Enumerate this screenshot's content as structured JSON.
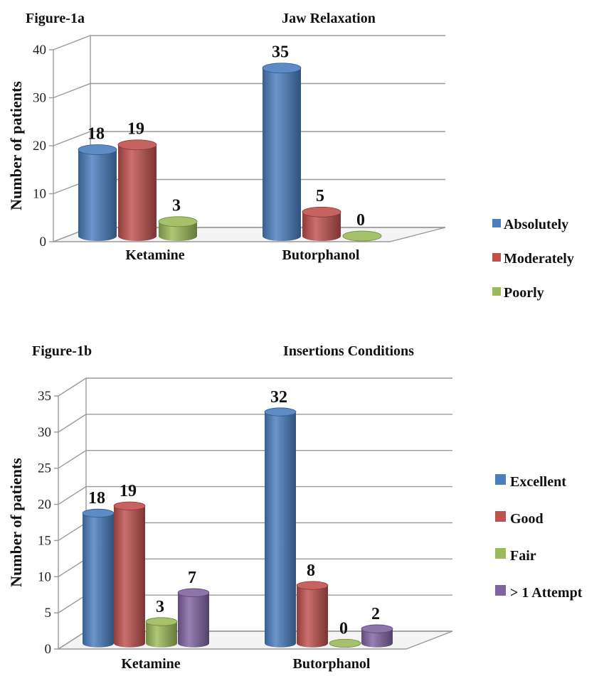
{
  "chart_data": [
    {
      "type": "bar",
      "figure_label": "Figure-1a",
      "title": "Jaw Relaxation",
      "xlabel": "",
      "ylabel": "Number of patients",
      "ylim": [
        0,
        40
      ],
      "yticks": [
        "0",
        "10",
        "20",
        "30",
        "40"
      ],
      "categories": [
        "Ketamine",
        "Butorphanol"
      ],
      "series": [
        {
          "name": "Absolutely",
          "color": "#4a7ebf",
          "values": [
            18,
            35
          ]
        },
        {
          "name": "Moderately",
          "color": "#c0504d",
          "values": [
            19,
            5
          ]
        },
        {
          "name": "Poorly",
          "color": "#9bbb59",
          "values": [
            3,
            0
          ]
        }
      ],
      "legend_position": "right",
      "grid": true
    },
    {
      "type": "bar",
      "figure_label": "Figure-1b",
      "title": "Insertions Conditions",
      "xlabel": "",
      "ylabel": "Number of patients",
      "ylim": [
        0,
        35
      ],
      "yticks": [
        "0",
        "5",
        "10",
        "15",
        "20",
        "25",
        "30",
        "35"
      ],
      "categories": [
        "Ketamine",
        "Butorphanol"
      ],
      "series": [
        {
          "name": "Excellent",
          "color": "#4a7ebf",
          "values": [
            18,
            32
          ]
        },
        {
          "name": "Good",
          "color": "#c0504d",
          "values": [
            19,
            8
          ]
        },
        {
          "name": "Fair",
          "color": "#9bbb59",
          "values": [
            3,
            0
          ]
        },
        {
          "name": "> 1 Attempt",
          "color": "#8064a2",
          "values": [
            7,
            2
          ]
        }
      ],
      "legend_position": "right",
      "grid": true
    }
  ]
}
